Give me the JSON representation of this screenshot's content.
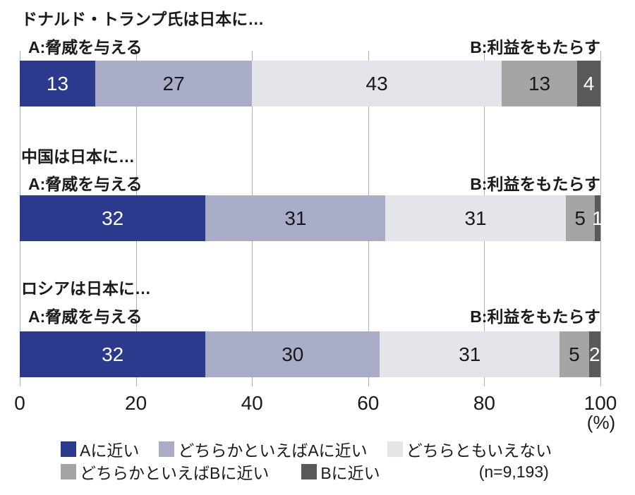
{
  "chart_data": {
    "type": "bar",
    "orientation": "horizontal",
    "stacked": true,
    "title": "",
    "xlabel": "",
    "ylabel": "",
    "unit": "(%)",
    "sample_size_label": "(n=9,193)",
    "axis": {
      "ticks": [
        0,
        20,
        40,
        60,
        80,
        100
      ],
      "min": 0,
      "max": 100,
      "grid": true
    },
    "legend_position": "bottom",
    "legend": [
      {
        "label": "Aに近い",
        "color": "#2b3a8c",
        "text_color": "#ffffff"
      },
      {
        "label": "どちらかといえばAに近い",
        "color": "#a9adc7",
        "text_color": "#1a1a1a"
      },
      {
        "label": "どちらともいえない",
        "color": "#e3e5eb",
        "text_color": "#1a1a1a"
      },
      {
        "label": "どちらかといえばBに近い",
        "color": "#a5a5a5",
        "text_color": "#1a1a1a"
      },
      {
        "label": "Bに近い",
        "color": "#595959",
        "text_color": "#ffffff"
      }
    ],
    "groups": [
      {
        "title": "ドナルド・トランプ氏は日本に…",
        "label_a": "A:脅威を与える",
        "label_b": "B:利益をもたらす",
        "values": [
          13,
          27,
          43,
          13,
          4
        ]
      },
      {
        "title": "中国は日本に…",
        "label_a": "A:脅威を与える",
        "label_b": "B:利益をもたらす",
        "values": [
          32,
          31,
          31,
          5,
          1
        ]
      },
      {
        "title": "ロシアは日本に…",
        "label_a": "A:脅威を与える",
        "label_b": "B:利益をもたらす",
        "values": [
          32,
          30,
          31,
          5,
          2
        ]
      }
    ]
  }
}
